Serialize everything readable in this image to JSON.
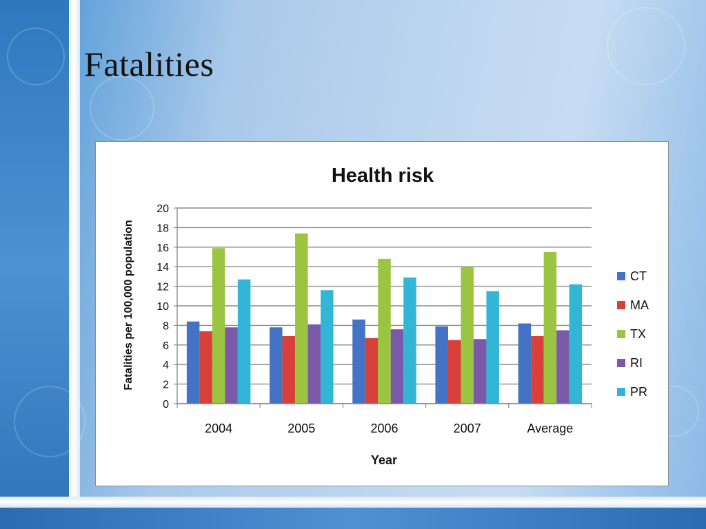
{
  "slide": {
    "title": "Fatalities"
  },
  "chart_data": {
    "type": "bar",
    "title": "Health risk",
    "xlabel": "Year",
    "ylabel": "Fatalities per 100,000 population",
    "categories": [
      "2004",
      "2005",
      "2006",
      "2007",
      "Average"
    ],
    "ylim": [
      0,
      20
    ],
    "yticks": [
      0,
      2,
      4,
      6,
      8,
      10,
      12,
      14,
      16,
      18,
      20
    ],
    "grid": true,
    "legend_position": "right",
    "series": [
      {
        "name": "CT",
        "color": "#4472c4",
        "values": [
          8.4,
          7.8,
          8.6,
          7.9,
          8.2
        ]
      },
      {
        "name": "MA",
        "color": "#d8403a",
        "values": [
          7.4,
          6.9,
          6.7,
          6.5,
          6.9
        ]
      },
      {
        "name": "TX",
        "color": "#9bc440",
        "values": [
          15.9,
          17.4,
          14.8,
          14.0,
          15.5
        ]
      },
      {
        "name": "RI",
        "color": "#7a5aa8",
        "values": [
          7.8,
          8.1,
          7.6,
          6.6,
          7.5
        ]
      },
      {
        "name": "PR",
        "color": "#33b6d6",
        "values": [
          12.7,
          11.6,
          12.9,
          11.5,
          12.2
        ]
      }
    ]
  }
}
